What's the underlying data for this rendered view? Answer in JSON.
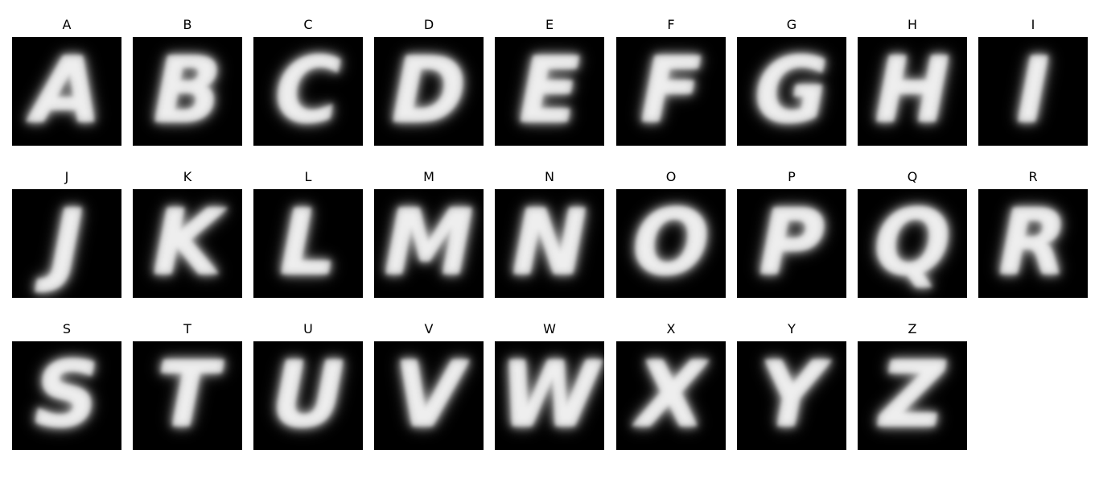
{
  "letters": [
    "A",
    "B",
    "C",
    "D",
    "E",
    "F",
    "G",
    "H",
    "I",
    "J",
    "K",
    "L",
    "M",
    "N",
    "O",
    "P",
    "Q",
    "R",
    "S",
    "T",
    "U",
    "V",
    "W",
    "X",
    "Y",
    "Z"
  ],
  "colors": {
    "tile_background": "#000000",
    "glyph": "#e6e6e6",
    "label": "#000000",
    "page": "#ffffff"
  }
}
